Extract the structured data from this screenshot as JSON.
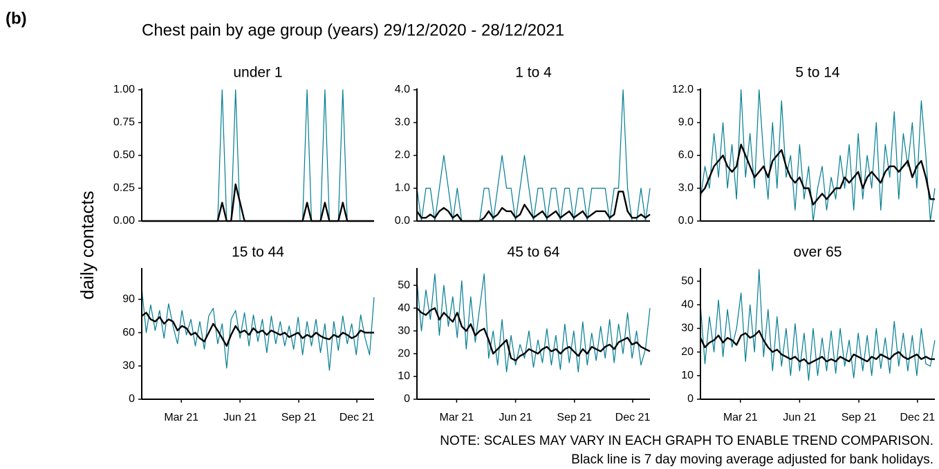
{
  "panel_label": "(b)",
  "title": "Chest pain by age group (years) 29/12/2020 - 28/12/2021",
  "y_label": "daily contacts",
  "notes": [
    "NOTE: SCALES MAY VARY IN EACH GRAPH TO ENABLE TREND COMPARISON.",
    "Black line is 7 day moving average adjusted for bank holidays."
  ],
  "chart_data": [
    {
      "type": "line",
      "title": "under 1",
      "x": [
        0,
        7,
        14,
        21,
        28,
        35,
        42,
        49,
        56,
        63,
        70,
        77,
        84,
        91,
        98,
        105,
        112,
        119,
        126,
        133,
        140,
        147,
        154,
        161,
        168,
        175,
        182,
        189,
        196,
        203,
        210,
        217,
        224,
        231,
        238,
        245,
        252,
        259,
        266,
        273,
        280,
        287,
        294,
        301,
        308,
        315,
        322,
        329,
        336,
        343,
        350,
        357,
        364
      ],
      "xlim": [
        0,
        364
      ],
      "ylim": [
        0,
        1
      ],
      "yticks": [
        {
          "value": 0,
          "label": "0.00"
        },
        {
          "value": 0.25,
          "label": "0.25"
        },
        {
          "value": 0.5,
          "label": "0.50"
        },
        {
          "value": 0.75,
          "label": "0.75"
        },
        {
          "value": 1,
          "label": "1.00"
        }
      ],
      "series": [
        {
          "color": "#007c92",
          "values": [
            0,
            0,
            0,
            0,
            0,
            0,
            0,
            0,
            0,
            0,
            0,
            0,
            0,
            0,
            0,
            0,
            0,
            0,
            1,
            0,
            0,
            1,
            0,
            0,
            0,
            0,
            0,
            0,
            0,
            0,
            0,
            0,
            0,
            0,
            0,
            0,
            0,
            1,
            0,
            0,
            0,
            1,
            0,
            0,
            0,
            1,
            0,
            0,
            0,
            0,
            0,
            0,
            0
          ]
        },
        {
          "color": "#000000",
          "values": [
            0,
            0,
            0,
            0,
            0,
            0,
            0,
            0,
            0,
            0,
            0,
            0,
            0,
            0,
            0,
            0,
            0,
            0,
            0.14,
            0,
            0,
            0.28,
            0.14,
            0,
            0,
            0,
            0,
            0,
            0,
            0,
            0,
            0,
            0,
            0,
            0,
            0,
            0,
            0.14,
            0,
            0,
            0,
            0.14,
            0,
            0,
            0,
            0.14,
            0,
            0,
            0,
            0,
            0,
            0,
            0
          ]
        }
      ]
    },
    {
      "type": "line",
      "title": "1 to 4",
      "x": [
        0,
        7,
        14,
        21,
        28,
        35,
        42,
        49,
        56,
        63,
        70,
        77,
        84,
        91,
        98,
        105,
        112,
        119,
        126,
        133,
        140,
        147,
        154,
        161,
        168,
        175,
        182,
        189,
        196,
        203,
        210,
        217,
        224,
        231,
        238,
        245,
        252,
        259,
        266,
        273,
        280,
        287,
        294,
        301,
        308,
        315,
        322,
        329,
        336,
        343,
        350,
        357,
        364
      ],
      "xlim": [
        0,
        364
      ],
      "ylim": [
        0,
        4
      ],
      "yticks": [
        {
          "value": 0,
          "label": "0.0"
        },
        {
          "value": 1,
          "label": "1.0"
        },
        {
          "value": 2,
          "label": "2.0"
        },
        {
          "value": 3,
          "label": "3.0"
        },
        {
          "value": 4,
          "label": "4.0"
        }
      ],
      "series": [
        {
          "color": "#007c92",
          "values": [
            1,
            0,
            1,
            1,
            0,
            1,
            2,
            1,
            0,
            1,
            0,
            0,
            0,
            0,
            0,
            1,
            1,
            0,
            1,
            2,
            1,
            1,
            0,
            1,
            2,
            1,
            0,
            1,
            1,
            0,
            1,
            1,
            0,
            1,
            1,
            0,
            1,
            1,
            0,
            1,
            1,
            1,
            1,
            0,
            1,
            1,
            4,
            1,
            0,
            0,
            1,
            0,
            1
          ]
        },
        {
          "color": "#000000",
          "values": [
            0.3,
            0.1,
            0.1,
            0.2,
            0.1,
            0.3,
            0.4,
            0.3,
            0.1,
            0.2,
            0,
            0,
            0,
            0,
            0,
            0.1,
            0.3,
            0.1,
            0.2,
            0.4,
            0.3,
            0.3,
            0.1,
            0.2,
            0.5,
            0.3,
            0.1,
            0.2,
            0.3,
            0.1,
            0.2,
            0.3,
            0.1,
            0.2,
            0.3,
            0.1,
            0.2,
            0.3,
            0.1,
            0.2,
            0.3,
            0.3,
            0.3,
            0.1,
            0.2,
            0.9,
            0.9,
            0.3,
            0.1,
            0.1,
            0.2,
            0.1,
            0.2
          ]
        }
      ]
    },
    {
      "type": "line",
      "title": "5 to 14",
      "x": [
        0,
        7,
        14,
        21,
        28,
        35,
        42,
        49,
        56,
        63,
        70,
        77,
        84,
        91,
        98,
        105,
        112,
        119,
        126,
        133,
        140,
        147,
        154,
        161,
        168,
        175,
        182,
        189,
        196,
        203,
        210,
        217,
        224,
        231,
        238,
        245,
        252,
        259,
        266,
        273,
        280,
        287,
        294,
        301,
        308,
        315,
        322,
        329,
        336,
        343,
        350,
        357,
        364
      ],
      "xlim": [
        0,
        364
      ],
      "ylim": [
        0,
        12
      ],
      "yticks": [
        {
          "value": 0,
          "label": "0.0"
        },
        {
          "value": 3,
          "label": "3.0"
        },
        {
          "value": 6,
          "label": "6.0"
        },
        {
          "value": 9,
          "label": "9.0"
        },
        {
          "value": 12,
          "label": "12.0"
        }
      ],
      "series": [
        {
          "color": "#007c92",
          "values": [
            2,
            5,
            3,
            8,
            4,
            9,
            3,
            7,
            2,
            12,
            4,
            8,
            3,
            12,
            6,
            2,
            9,
            3,
            11,
            4,
            6,
            1,
            7,
            2,
            5,
            0,
            3,
            5,
            1,
            4,
            2,
            6,
            3,
            7,
            1,
            8,
            2,
            6,
            3,
            9,
            1,
            7,
            4,
            10,
            2,
            8,
            5,
            9,
            3,
            11,
            6,
            0,
            3
          ]
        },
        {
          "color": "#000000",
          "values": [
            2.5,
            3,
            4,
            5,
            5.5,
            6,
            5,
            4.5,
            5,
            7,
            6,
            5,
            4,
            4.5,
            5,
            4,
            5.5,
            6,
            6.5,
            5,
            4,
            3.5,
            4,
            3,
            3,
            1.5,
            2,
            2.5,
            2,
            2.5,
            3,
            3,
            4,
            3.5,
            4,
            4.5,
            3,
            4,
            4.5,
            4,
            3.5,
            4.5,
            5,
            5,
            4.5,
            5,
            5.5,
            4,
            5,
            5.5,
            4,
            2,
            2
          ]
        }
      ]
    },
    {
      "type": "line",
      "title": "15 to 44",
      "x": [
        0,
        7,
        14,
        21,
        28,
        35,
        42,
        49,
        56,
        63,
        70,
        77,
        84,
        91,
        98,
        105,
        112,
        119,
        126,
        133,
        140,
        147,
        154,
        161,
        168,
        175,
        182,
        189,
        196,
        203,
        210,
        217,
        224,
        231,
        238,
        245,
        252,
        259,
        266,
        273,
        280,
        287,
        294,
        301,
        308,
        315,
        322,
        329,
        336,
        343,
        350,
        357,
        364
      ],
      "xlim": [
        0,
        364
      ],
      "ylim": [
        0,
        117
      ],
      "yticks": [
        0,
        30,
        60,
        90
      ],
      "xticks": [
        {
          "value": 62,
          "label": "Mar 21"
        },
        {
          "value": 154,
          "label": "Jun 21"
        },
        {
          "value": 246,
          "label": "Sep 21"
        },
        {
          "value": 337,
          "label": "Dec 21"
        }
      ],
      "series": [
        {
          "color": "#007c92",
          "values": [
            100,
            60,
            85,
            62,
            80,
            55,
            86,
            66,
            50,
            80,
            58,
            72,
            48,
            70,
            45,
            75,
            82,
            50,
            68,
            28,
            72,
            80,
            55,
            78,
            48,
            76,
            52,
            72,
            42,
            75,
            50,
            70,
            48,
            66,
            45,
            74,
            40,
            70,
            48,
            72,
            42,
            68,
            26,
            70,
            44,
            75,
            50,
            68,
            40,
            76,
            55,
            40,
            92
          ]
        },
        {
          "color": "#000000",
          "values": [
            75,
            78,
            72,
            70,
            74,
            68,
            72,
            70,
            62,
            66,
            64,
            58,
            60,
            55,
            52,
            60,
            68,
            62,
            55,
            48,
            58,
            66,
            60,
            62,
            58,
            64,
            60,
            62,
            58,
            62,
            60,
            58,
            60,
            56,
            58,
            60,
            55,
            58,
            56,
            60,
            57,
            55,
            54,
            58,
            56,
            60,
            58,
            55,
            57,
            62,
            60,
            60,
            60
          ]
        }
      ]
    },
    {
      "type": "line",
      "title": "45 to 64",
      "x": [
        0,
        7,
        14,
        21,
        28,
        35,
        42,
        49,
        56,
        63,
        70,
        77,
        84,
        91,
        98,
        105,
        112,
        119,
        126,
        133,
        140,
        147,
        154,
        161,
        168,
        175,
        182,
        189,
        196,
        203,
        210,
        217,
        224,
        231,
        238,
        245,
        252,
        259,
        266,
        273,
        280,
        287,
        294,
        301,
        308,
        315,
        322,
        329,
        336,
        343,
        350,
        357,
        364
      ],
      "xlim": [
        0,
        364
      ],
      "ylim": [
        0,
        57
      ],
      "yticks": [
        0,
        10,
        20,
        30,
        40,
        50
      ],
      "xticks": [
        {
          "value": 62,
          "label": "Mar 21"
        },
        {
          "value": 154,
          "label": "Jun 21"
        },
        {
          "value": 246,
          "label": "Sep 21"
        },
        {
          "value": 337,
          "label": "Dec 21"
        }
      ],
      "series": [
        {
          "color": "#007c92",
          "values": [
            52,
            30,
            48,
            35,
            55,
            28,
            50,
            32,
            45,
            27,
            52,
            22,
            45,
            25,
            40,
            55,
            18,
            30,
            15,
            35,
            12,
            28,
            15,
            24,
            18,
            30,
            14,
            26,
            16,
            31,
            15,
            28,
            13,
            33,
            16,
            30,
            12,
            34,
            15,
            29,
            17,
            32,
            18,
            35,
            16,
            33,
            20,
            38,
            18,
            30,
            15,
            22,
            40
          ]
        },
        {
          "color": "#000000",
          "values": [
            40,
            38,
            37,
            39,
            40,
            35,
            38,
            36,
            34,
            38,
            32,
            30,
            33,
            28,
            30,
            31,
            26,
            20,
            22,
            24,
            26,
            18,
            17,
            19,
            20,
            22,
            21,
            20,
            22,
            23,
            21,
            22,
            20,
            22,
            23,
            21,
            19,
            22,
            20,
            23,
            22,
            21,
            23,
            24,
            22,
            25,
            26,
            27,
            24,
            25,
            23,
            22,
            21
          ]
        }
      ]
    },
    {
      "type": "line",
      "title": "over 65",
      "x": [
        0,
        7,
        14,
        21,
        28,
        35,
        42,
        49,
        56,
        63,
        70,
        77,
        84,
        91,
        98,
        105,
        112,
        119,
        126,
        133,
        140,
        147,
        154,
        161,
        168,
        175,
        182,
        189,
        196,
        203,
        210,
        217,
        224,
        231,
        238,
        245,
        252,
        259,
        266,
        273,
        280,
        287,
        294,
        301,
        308,
        315,
        322,
        329,
        336,
        343,
        350,
        357,
        364
      ],
      "xlim": [
        0,
        364
      ],
      "ylim": [
        0,
        55
      ],
      "yticks": [
        0,
        10,
        20,
        30,
        40,
        50
      ],
      "xticks": [
        {
          "value": 62,
          "label": "Mar 21"
        },
        {
          "value": 154,
          "label": "Jun 21"
        },
        {
          "value": 246,
          "label": "Sep 21"
        },
        {
          "value": 337,
          "label": "Dec 21"
        }
      ],
      "series": [
        {
          "color": "#007c92",
          "values": [
            40,
            15,
            35,
            20,
            42,
            18,
            38,
            22,
            30,
            45,
            16,
            40,
            20,
            55,
            18,
            38,
            12,
            35,
            14,
            30,
            10,
            32,
            12,
            28,
            8,
            30,
            10,
            26,
            12,
            29,
            11,
            30,
            14,
            25,
            9,
            28,
            12,
            27,
            10,
            30,
            13,
            26,
            11,
            33,
            14,
            28,
            12,
            27,
            10,
            30,
            15,
            14,
            25
          ]
        },
        {
          "color": "#000000",
          "values": [
            26,
            22,
            24,
            25,
            27,
            24,
            26,
            25,
            23,
            27,
            28,
            26,
            27,
            29,
            25,
            22,
            20,
            21,
            19,
            18,
            17,
            18,
            16,
            17,
            15,
            16,
            17,
            18,
            16,
            17,
            16,
            18,
            17,
            16,
            19,
            18,
            17,
            16,
            18,
            17,
            19,
            18,
            17,
            19,
            20,
            18,
            17,
            18,
            19,
            17,
            18,
            17,
            17
          ]
        }
      ]
    }
  ]
}
